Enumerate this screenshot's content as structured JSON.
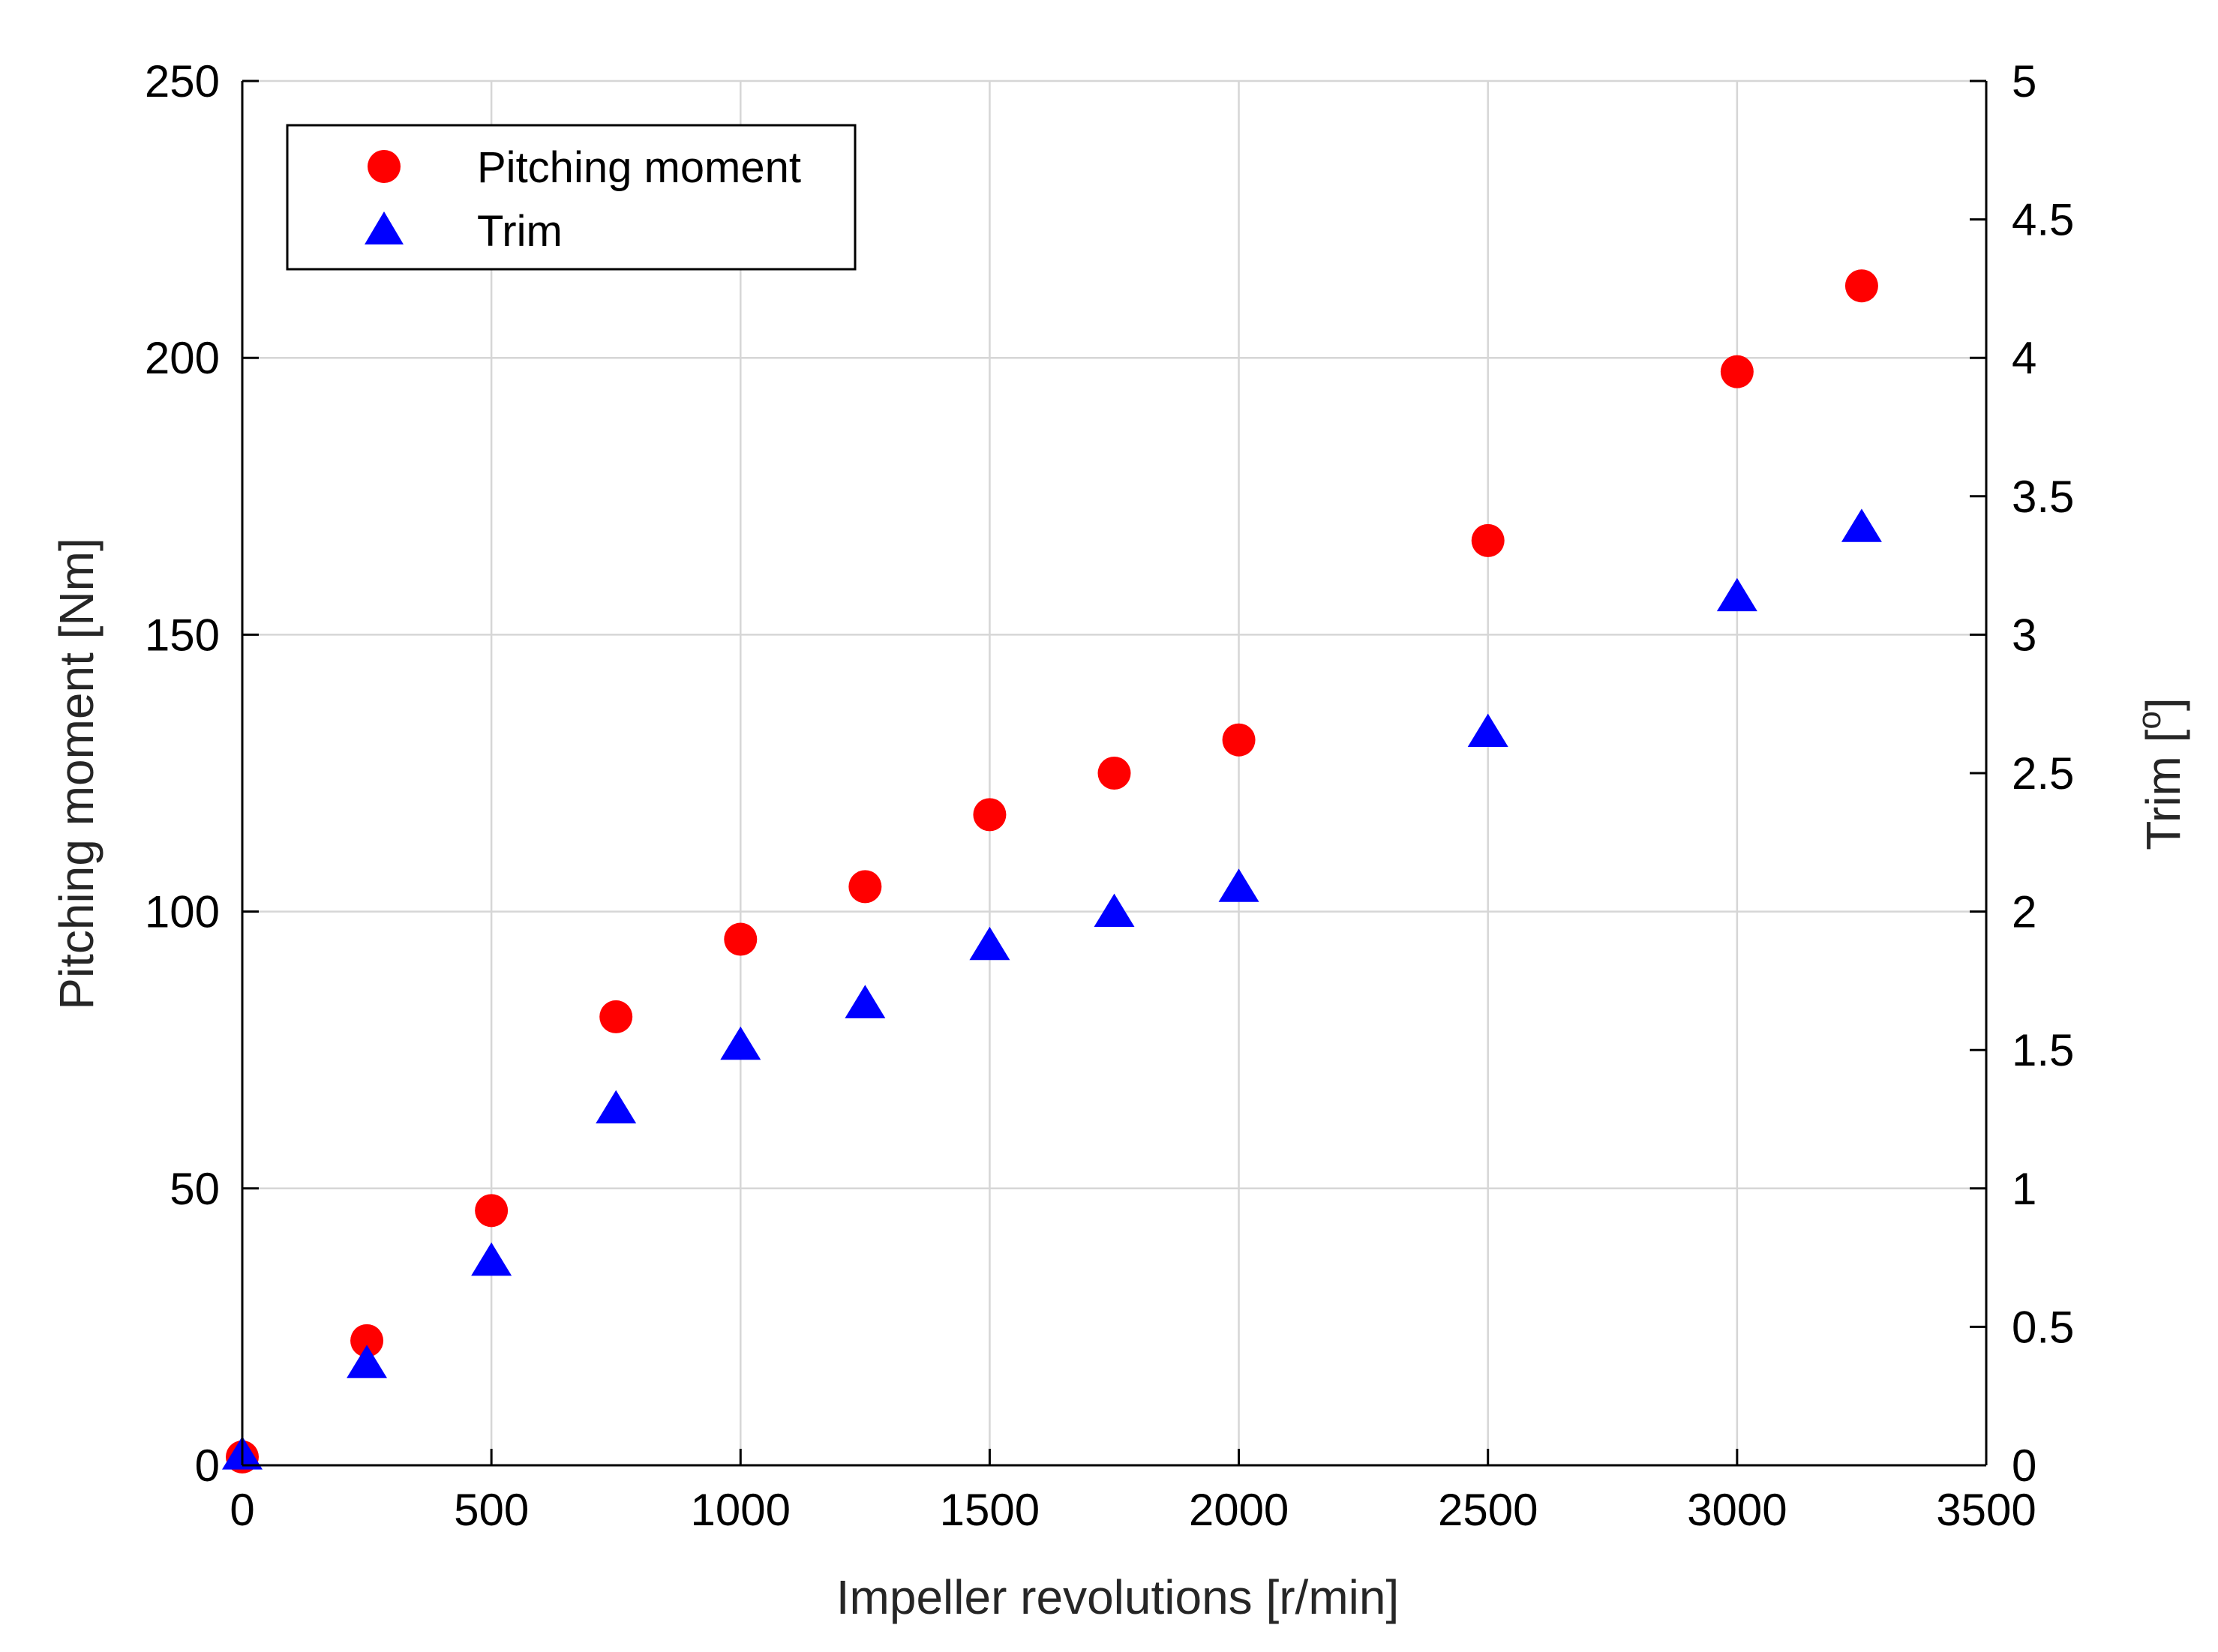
{
  "chart_data": {
    "type": "scatter",
    "title": "",
    "xlabel": "Impeller revolutions [r/min]",
    "ylabel_left": "Pitching moment [Nm]",
    "ylabel_right_main": "Trim [",
    "ylabel_right_sup": "o",
    "ylabel_right_end": "]",
    "xlim": [
      0,
      3500
    ],
    "ylim_left": [
      0,
      250
    ],
    "ylim_right": [
      0,
      5
    ],
    "xticks": [
      0,
      500,
      1000,
      1500,
      2000,
      2500,
      3000,
      3500
    ],
    "xtick_labels": [
      "0",
      "500",
      "1000",
      "1500",
      "2000",
      "2500",
      "3000",
      "3500"
    ],
    "yticks_left": [
      0,
      50,
      100,
      150,
      200,
      250
    ],
    "ytick_labels_left": [
      "0",
      "50",
      "100",
      "150",
      "200",
      "250"
    ],
    "yticks_right": [
      0,
      0.5,
      1,
      1.5,
      2,
      2.5,
      3,
      3.5,
      4,
      4.5,
      5
    ],
    "ytick_labels_right": [
      "0",
      "0.5",
      "1",
      "1.5",
      "2",
      "2.5",
      "3",
      "3.5",
      "4",
      "4.5",
      "5"
    ],
    "grid": true,
    "legend_position": "top-left",
    "series": [
      {
        "name": "Pitching moment",
        "axis": "left",
        "marker": "circle",
        "color": "#ff0000",
        "x": [
          0,
          250,
          500,
          750,
          1000,
          1250,
          1500,
          1750,
          2000,
          2500,
          3000,
          3250
        ],
        "values": [
          1.5,
          22.5,
          46,
          81,
          95,
          104.5,
          117.5,
          125,
          131,
          167,
          197.5,
          213
        ]
      },
      {
        "name": "Trim",
        "axis": "right",
        "marker": "triangle",
        "color": "#0000ff",
        "x": [
          0,
          250,
          500,
          750,
          1000,
          1250,
          1500,
          1750,
          2000,
          2500,
          3000,
          3250
        ],
        "values": [
          0.04,
          0.37,
          0.74,
          1.29,
          1.52,
          1.67,
          1.88,
          2.0,
          2.09,
          2.65,
          3.14,
          3.39
        ]
      }
    ]
  }
}
